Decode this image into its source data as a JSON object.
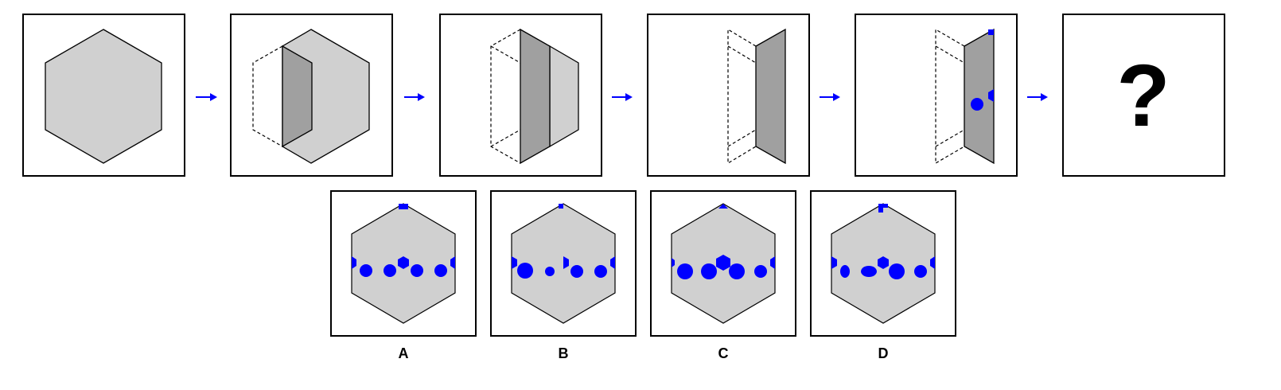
{
  "colors": {
    "shape_fill": "#d0d0d0",
    "fold_fill": "#a0a0a0",
    "hole_color": "#0000ff",
    "arrow_color": "#0000ff",
    "outline": "#000000"
  },
  "sequence": {
    "step_count": 6,
    "question_mark": "?"
  },
  "options": [
    {
      "label": "A"
    },
    {
      "label": "B"
    },
    {
      "label": "C"
    },
    {
      "label": "D"
    }
  ]
}
